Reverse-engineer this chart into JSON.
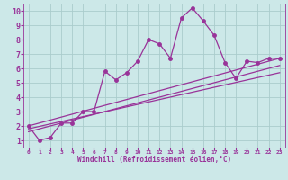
{
  "bg_color": "#cce8e8",
  "line_color": "#993399",
  "grid_color": "#aacccc",
  "xlabel": "Windchill (Refroidissement éolien,°C)",
  "tick_color": "#993399",
  "xlim": [
    -0.5,
    23.5
  ],
  "ylim": [
    0.5,
    10.5
  ],
  "xticks": [
    0,
    1,
    2,
    3,
    4,
    5,
    6,
    7,
    8,
    9,
    10,
    11,
    12,
    13,
    14,
    15,
    16,
    17,
    18,
    19,
    20,
    21,
    22,
    23
  ],
  "yticks": [
    1,
    2,
    3,
    4,
    5,
    6,
    7,
    8,
    9,
    10
  ],
  "main_x": [
    0,
    1,
    2,
    3,
    4,
    5,
    6,
    7,
    8,
    9,
    10,
    11,
    12,
    13,
    14,
    15,
    16,
    17,
    18,
    19,
    20,
    21,
    22,
    23
  ],
  "main_y": [
    2.0,
    1.0,
    1.2,
    2.2,
    2.2,
    3.0,
    3.0,
    5.8,
    5.2,
    5.7,
    6.5,
    8.0,
    7.7,
    6.7,
    9.5,
    10.2,
    9.3,
    8.3,
    6.4,
    5.3,
    6.5,
    6.4,
    6.7,
    6.7
  ],
  "line2_x": [
    0,
    23
  ],
  "line2_y": [
    1.6,
    6.2
  ],
  "line3_x": [
    0,
    23
  ],
  "line3_y": [
    1.8,
    5.7
  ],
  "line4_x": [
    0,
    23
  ],
  "line4_y": [
    2.0,
    6.7
  ],
  "marker_size": 2.5,
  "line_width": 0.9,
  "xlabel_fontsize": 5.5,
  "xtick_fontsize": 4.5,
  "ytick_fontsize": 6
}
